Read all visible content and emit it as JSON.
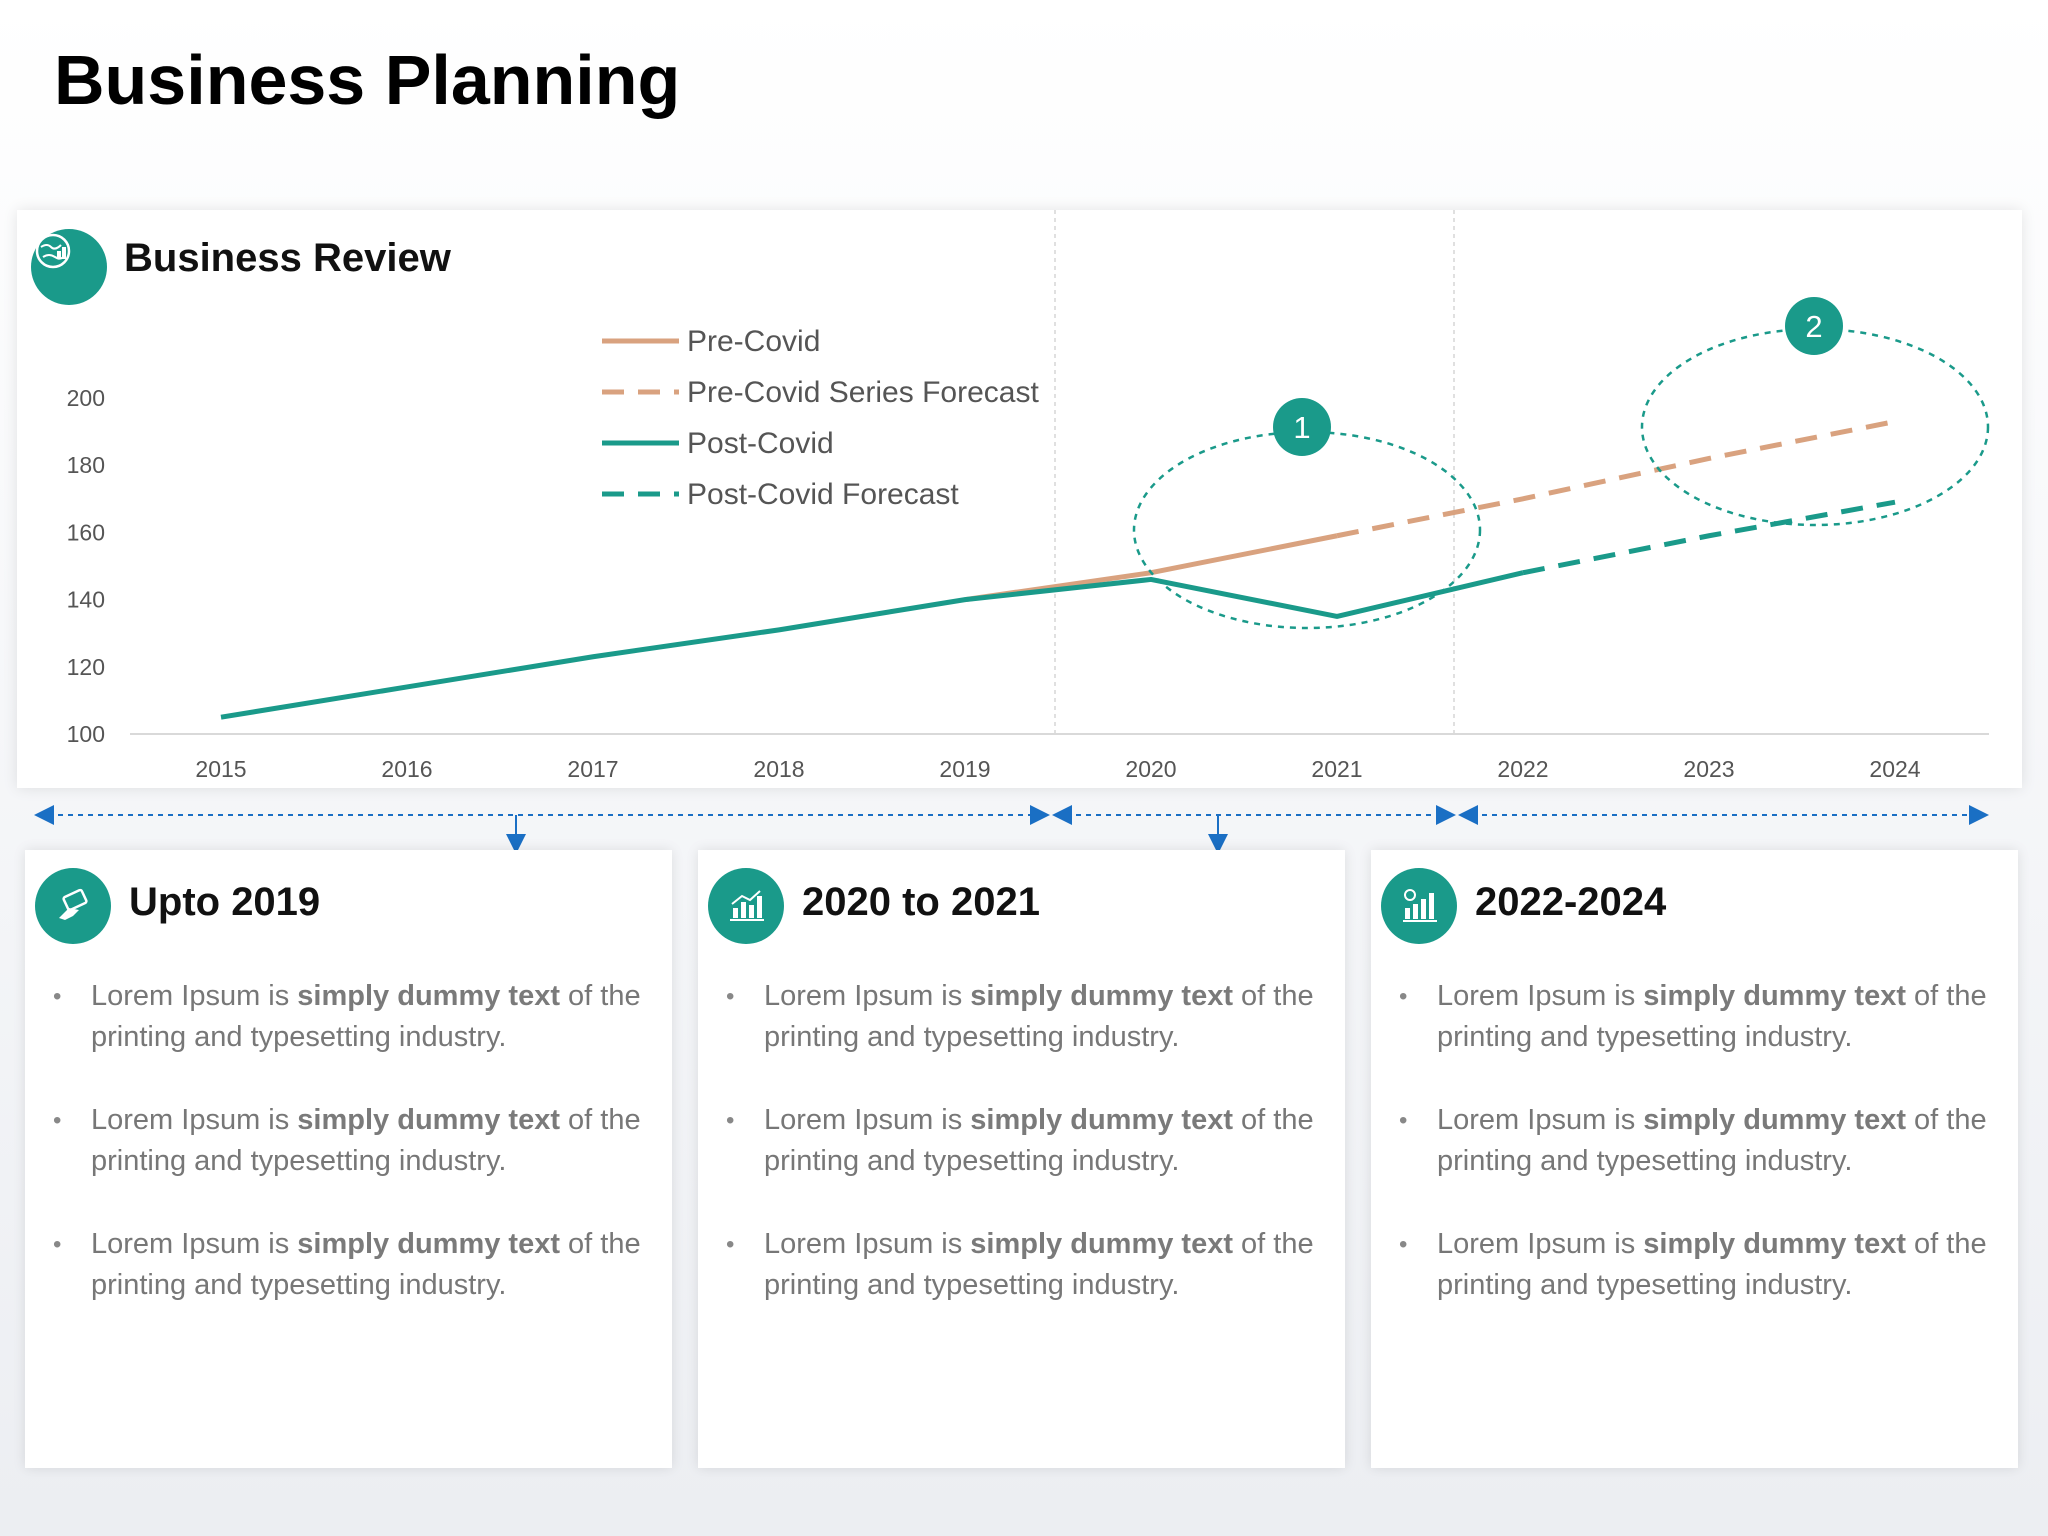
{
  "page": {
    "title": "Business Planning"
  },
  "chart_card": {
    "title": "Business Review",
    "icon": "globe-chart-icon",
    "callouts": [
      "1",
      "2"
    ]
  },
  "colors": {
    "accent": "#1a9a8a",
    "pre_covid": "#d9a27f",
    "timeline": "#1a6fc4"
  },
  "chart_data": {
    "type": "line",
    "x": [
      "2015",
      "2016",
      "2017",
      "2018",
      "2019",
      "2020",
      "2021",
      "2022",
      "2023",
      "2024"
    ],
    "ylim": [
      100,
      200
    ],
    "yticks": [
      100,
      120,
      140,
      160,
      180,
      200
    ],
    "grid": false,
    "legend_position": "top-center",
    "series": [
      {
        "name": "Pre-Covid",
        "style": "solid",
        "color": "#d9a27f",
        "x": [
          "2019",
          "2020",
          "2021"
        ],
        "values": [
          140,
          148,
          159
        ]
      },
      {
        "name": "Pre-Covid Series Forecast",
        "style": "dashed",
        "color": "#d9a27f",
        "x": [
          "2021",
          "2022",
          "2023",
          "2024"
        ],
        "values": [
          159,
          170,
          182,
          193
        ]
      },
      {
        "name": "Post-Covid",
        "style": "solid",
        "color": "#1a9a8a",
        "x": [
          "2015",
          "2016",
          "2017",
          "2018",
          "2019",
          "2020",
          "2021",
          "2022"
        ],
        "values": [
          105,
          114,
          123,
          131,
          140,
          146,
          135,
          148
        ]
      },
      {
        "name": "Post-Covid Forecast",
        "style": "dashed",
        "color": "#1a9a8a",
        "x": [
          "2022",
          "2023",
          "2024"
        ],
        "values": [
          148,
          159,
          169
        ]
      }
    ]
  },
  "periods": [
    {
      "title": "Upto 2019",
      "icon": "hand-card-icon",
      "bullets": [
        {
          "pre": "Lorem Ipsum is ",
          "bold": "simply dummy text",
          "post": " of the printing and typesetting industry."
        },
        {
          "pre": "Lorem Ipsum is ",
          "bold": "simply dummy text",
          "post": " of the printing and typesetting industry."
        },
        {
          "pre": "Lorem Ipsum is ",
          "bold": "simply dummy text",
          "post": " of the printing and typesetting industry."
        }
      ]
    },
    {
      "title": "2020 to 2021",
      "icon": "bar-chart-icon",
      "bullets": [
        {
          "pre": "Lorem Ipsum is ",
          "bold": "simply dummy text",
          "post": " of the printing and typesetting industry."
        },
        {
          "pre": "Lorem Ipsum is ",
          "bold": "simply dummy text",
          "post": " of the printing and typesetting industry."
        },
        {
          "pre": "Lorem Ipsum is ",
          "bold": "simply dummy text",
          "post": " of the printing and typesetting industry."
        }
      ]
    },
    {
      "title": "2022-2024",
      "icon": "money-growth-icon",
      "bullets": [
        {
          "pre": "Lorem Ipsum is ",
          "bold": "simply dummy text",
          "post": " of the printing and typesetting industry."
        },
        {
          "pre": "Lorem Ipsum is ",
          "bold": "simply dummy text",
          "post": " of the printing and typesetting industry."
        },
        {
          "pre": "Lorem Ipsum is ",
          "bold": "simply dummy text",
          "post": " of the printing and typesetting industry."
        }
      ]
    }
  ]
}
